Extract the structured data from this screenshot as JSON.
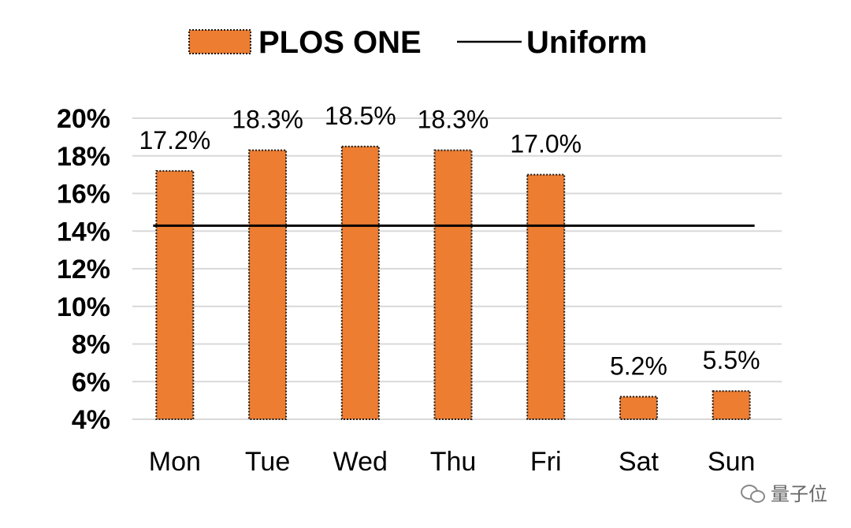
{
  "chart_data": {
    "type": "bar",
    "categories": [
      "Mon",
      "Tue",
      "Wed",
      "Thu",
      "Fri",
      "Sat",
      "Sun"
    ],
    "series": [
      {
        "name": "PLOS ONE",
        "type": "bar",
        "values": [
          17.2,
          18.3,
          18.5,
          18.3,
          17.0,
          5.2,
          5.5
        ],
        "labels": [
          "17.2%",
          "18.3%",
          "18.5%",
          "18.3%",
          "17.0%",
          "5.2%",
          "5.5%"
        ],
        "color": "#ED7D31"
      },
      {
        "name": "Uniform",
        "type": "line",
        "values": [
          14.29,
          14.29,
          14.29,
          14.29,
          14.29,
          14.29,
          14.29
        ],
        "color": "#000000"
      }
    ],
    "yticks": [
      "4%",
      "6%",
      "8%",
      "10%",
      "12%",
      "14%",
      "16%",
      "18%",
      "20%"
    ],
    "ylim": [
      4,
      20
    ],
    "grid": true,
    "legend_position": "top"
  },
  "watermark": {
    "icon": "wechat-icon",
    "text": "量子位"
  }
}
